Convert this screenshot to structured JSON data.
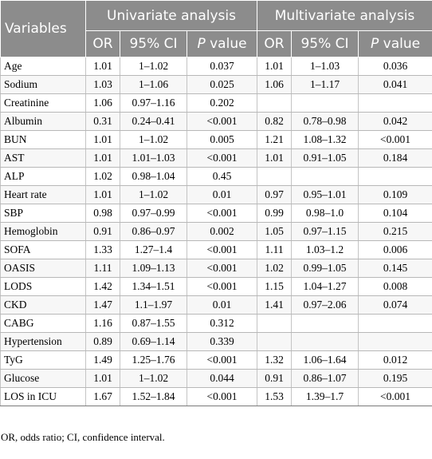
{
  "header": {
    "variables": "Variables",
    "univariate": "Univariate analysis",
    "multivariate": "Multivariate analysis",
    "or": "OR",
    "ci": "95% CI",
    "p_prefix": "P",
    "p_suffix": " value"
  },
  "rows": [
    {
      "name": "Age",
      "u_or": "1.01",
      "u_ci": "1–1.02",
      "u_p": "0.037",
      "m_or": "1.01",
      "m_ci": "1–1.03",
      "m_p": "0.036"
    },
    {
      "name": "Sodium",
      "u_or": "1.03",
      "u_ci": "1–1.06",
      "u_p": "0.025",
      "m_or": "1.06",
      "m_ci": "1–1.17",
      "m_p": "0.041"
    },
    {
      "name": "Creatinine",
      "u_or": "1.06",
      "u_ci": "0.97–1.16",
      "u_p": "0.202",
      "m_or": "",
      "m_ci": "",
      "m_p": ""
    },
    {
      "name": "Albumin",
      "u_or": "0.31",
      "u_ci": "0.24–0.41",
      "u_p": "<0.001",
      "m_or": "0.82",
      "m_ci": "0.78–0.98",
      "m_p": "0.042"
    },
    {
      "name": "BUN",
      "u_or": "1.01",
      "u_ci": "1–1.02",
      "u_p": "0.005",
      "m_or": "1.21",
      "m_ci": "1.08–1.32",
      "m_p": "<0.001"
    },
    {
      "name": "AST",
      "u_or": "1.01",
      "u_ci": "1.01–1.03",
      "u_p": "<0.001",
      "m_or": "1.01",
      "m_ci": "0.91–1.05",
      "m_p": "0.184"
    },
    {
      "name": "ALP",
      "u_or": "1.02",
      "u_ci": "0.98–1.04",
      "u_p": "0.45",
      "m_or": "",
      "m_ci": "",
      "m_p": ""
    },
    {
      "name": "Heart rate",
      "u_or": "1.01",
      "u_ci": "1–1.02",
      "u_p": "0.01",
      "m_or": "0.97",
      "m_ci": "0.95–1.01",
      "m_p": "0.109"
    },
    {
      "name": "SBP",
      "u_or": "0.98",
      "u_ci": "0.97–0.99",
      "u_p": "<0.001",
      "m_or": "0.99",
      "m_ci": "0.98–1.0",
      "m_p": "0.104"
    },
    {
      "name": "Hemoglobin",
      "u_or": "0.91",
      "u_ci": "0.86–0.97",
      "u_p": "0.002",
      "m_or": "1.05",
      "m_ci": "0.97–1.15",
      "m_p": "0.215"
    },
    {
      "name": "SOFA",
      "u_or": "1.33",
      "u_ci": "1.27–1.4",
      "u_p": "<0.001",
      "m_or": "1.11",
      "m_ci": "1.03–1.2",
      "m_p": "0.006"
    },
    {
      "name": "OASIS",
      "u_or": "1.11",
      "u_ci": "1.09–1.13",
      "u_p": "<0.001",
      "m_or": "1.02",
      "m_ci": "0.99–1.05",
      "m_p": "0.145"
    },
    {
      "name": "LODS",
      "u_or": "1.42",
      "u_ci": "1.34–1.51",
      "u_p": "<0.001",
      "m_or": "1.15",
      "m_ci": "1.04–1.27",
      "m_p": "0.008"
    },
    {
      "name": "CKD",
      "u_or": "1.47",
      "u_ci": "1.1–1.97",
      "u_p": "0.01",
      "m_or": "1.41",
      "m_ci": "0.97–2.06",
      "m_p": "0.074"
    },
    {
      "name": "CABG",
      "u_or": "1.16",
      "u_ci": "0.87–1.55",
      "u_p": "0.312",
      "m_or": "",
      "m_ci": "",
      "m_p": ""
    },
    {
      "name": "Hypertension",
      "u_or": "0.89",
      "u_ci": "0.69–1.14",
      "u_p": "0.339",
      "m_or": "",
      "m_ci": "",
      "m_p": ""
    },
    {
      "name": "TyG",
      "u_or": "1.49",
      "u_ci": "1.25–1.76",
      "u_p": "<0.001",
      "m_or": "1.32",
      "m_ci": "1.06–1.64",
      "m_p": "0.012"
    },
    {
      "name": "Glucose",
      "u_or": "1.01",
      "u_ci": "1–1.02",
      "u_p": "0.044",
      "m_or": "0.91",
      "m_ci": "0.86–1.07",
      "m_p": "0.195"
    },
    {
      "name": "LOS in ICU",
      "u_or": "1.67",
      "u_ci": "1.52–1.84",
      "u_p": "<0.001",
      "m_or": "1.53",
      "m_ci": "1.39–1.7",
      "m_p": "<0.001"
    }
  ],
  "footnote": "OR, odds ratio; CI, confidence interval.",
  "colors": {
    "header_bg": "#8c8c8c",
    "header_text": "#ffffff",
    "row_alt": "#f7f7f7"
  }
}
